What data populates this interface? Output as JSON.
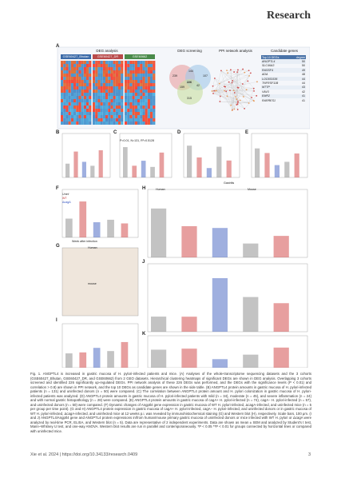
{
  "header": {
    "journal": "Research"
  },
  "figure": {
    "panel_a": {
      "titles": [
        "DEG analysis",
        "DEG screening",
        "PPI network analysis",
        "Candidate genes"
      ],
      "datasets": [
        "GSE60427_Bhutan",
        "GSE60427_DR",
        "GSE60662"
      ],
      "venn": [
        "239",
        "144",
        "107",
        "42",
        "226",
        "159",
        "315"
      ],
      "table_header": [
        "Top 10 DEGs",
        "degree"
      ],
      "genes": [
        [
          "ANGPTL4",
          "50"
        ],
        [
          "SLC46A3",
          "50"
        ],
        [
          "RASSF4",
          "49"
        ],
        [
          "ADA",
          "48"
        ],
        [
          "LOC651536",
          "44"
        ],
        [
          "TNFRSF11B",
          "44"
        ],
        [
          "MTTP",
          "43"
        ],
        [
          "VAV3",
          "42"
        ],
        [
          "EMR2",
          "41"
        ],
        [
          "RARRES1",
          "41"
        ]
      ]
    },
    "panel_labels": [
      "A",
      "B",
      "C",
      "D",
      "E",
      "F",
      "G",
      "H",
      "I",
      "J",
      "K"
    ],
    "texts": {
      "c_stats": "P=0.01, N=131, R²=0.5128",
      "d_axis": "Gastritis",
      "h_human": "Human",
      "h_mouse": "Mouse",
      "g_human": "Human",
      "g_mouse": "mouse",
      "f_axis": "Week after infection",
      "legend": [
        "Uninf",
        "WT",
        "ΔcagA"
      ]
    }
  },
  "caption": "Fig. 1. ANGPTL4 is increased in gastric mucosa of H. pylori-infected patients and mice. (A) Analyses of the whole-transcriptome sequencing datasets and the 3 cohorts (GSE60427_Bhutan, GSE60427_DR, and GSE60662) from 2 GEO datasets. Hierarchical clustering heatmaps of significant DEGs are shown in DEG analysis. Overlapping 3 cohorts screened and identified 226 significantly up-regulated DEGs. PPI network analysis of these 226 DEGs was performed, and the DEGs with the significance levels (P < 0.01) and correlation > 0.8) are shown in PPI network, and the top 10 DEGs as candidate genes are shown in the side table. (B) ANGPTL4 protein amounts in gastric mucosa of H. pylori-infected patients (n = 131) and uninfected donors (n = 50) were compared. (C) The correlation between ANGPTL4 protein amount and H. pylori colonization in gastric mucosa of H. pylori-infected patients was analyzed. (D) ANGPTL4 protein amounts in gastric mucosa of H. pylori-infected patients with mild (n = 34), moderate (n = 45), and severe inflammation (n = 24) and with normal gastric histopathology (n = 28) were compared. (E) ANGPTL4 protein amounts in gastric mucosa of cagA+ H. pylori-infected (n = 74), cagA− H. pylori-infected (n = 57), and uninfected donors (n = 50) were compared. (F) Dynamic changes of Angptl4 gene expression in gastric mucosa of WT H. pylori-infected, ΔcagA-infected, and uninfected mice (n = 5 per group per time point). (G and H) ANGPTL4 protein expression in gastric mucosa of cagA+ H. pylori-infected, cagA− H. pylori-infected, and uninfected donors or in gastric mucosa of WT H. pylori-infected, ΔcagA-infected, and uninfected mice at 12 weeks p.i. was revealed by immunohistochemical staining (G) and Western blot (H), respectively. Scale bars, 100 μm. (I and J) ANGPTL4/Angptl4 gene and ANGPTL4 protein expressions in/from human/mouse primary gastric mucosa of uninfected donors or mice infected with WT H. pylori or ΔcagA were analyzed by real-time PCR, ELISA, and Western blot (n = 5). Data are representative of 2 independent experiments. Data are shown as mean ± SEM and analyzed by Student's t test, Mann–Whitney U test, and one-way ANOVA. Western blot results are run in parallel and contemporaneously. *P < 0.05 **P < 0.01 for groups connected by horizontal lines or compared with uninfected mice.",
  "footer": {
    "citation": "Xie et al. 2024 | https://doi.org/10.34133/research.0409",
    "page": "3"
  }
}
